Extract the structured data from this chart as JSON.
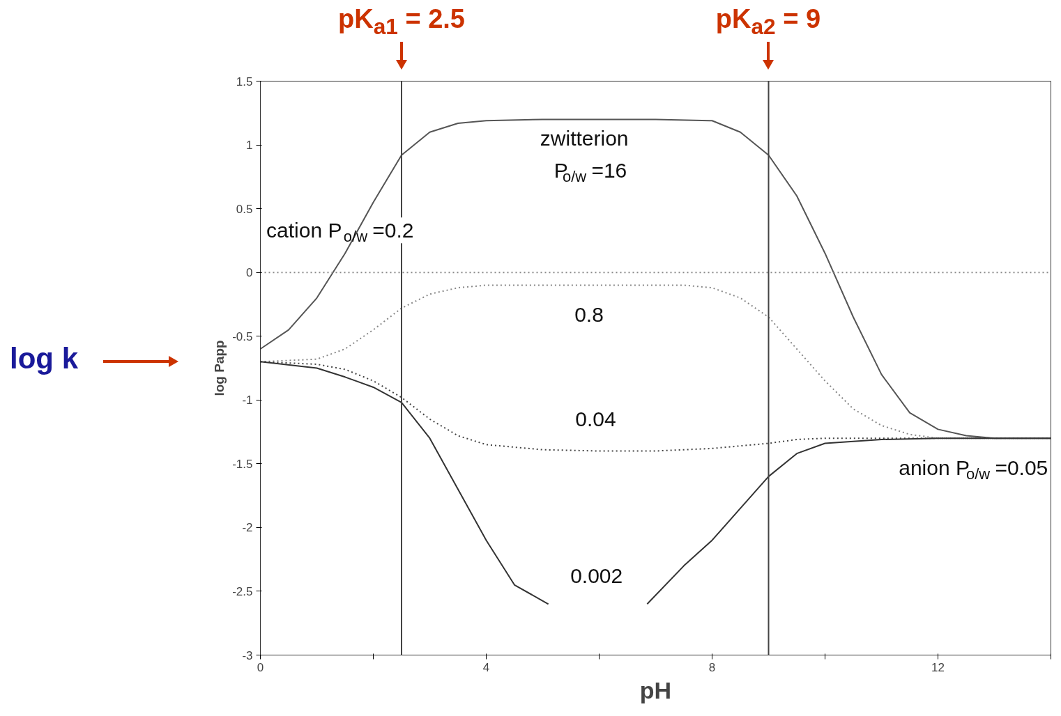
{
  "chart_data": {
    "type": "line",
    "xlabel": "pH",
    "ylabel": "log Papp",
    "xlim": [
      0,
      14
    ],
    "ylim": [
      -3,
      1.5
    ],
    "xticks": [
      0,
      {
        "value": 2,
        "label": null
      },
      4,
      {
        "value": 6,
        "label": null
      },
      8,
      {
        "value": 10,
        "label": null
      },
      12,
      {
        "value": 14,
        "label": null
      }
    ],
    "yticks": [
      1.5,
      1,
      0.5,
      0,
      -0.5,
      -1,
      -1.5,
      -2,
      -2.5,
      -3
    ],
    "grid": false,
    "marker": "none",
    "series": [
      {
        "color": "#555555",
        "line_style": "solid",
        "x": [
          0,
          0.5,
          1,
          1.5,
          2,
          2.5,
          3,
          3.5,
          4,
          5,
          6,
          7,
          8,
          8.5,
          9,
          9.5,
          10,
          10.5,
          11,
          11.5,
          12,
          12.5,
          13,
          14
        ],
        "values": [
          -0.6,
          -0.45,
          -0.2,
          0.15,
          0.55,
          0.92,
          1.1,
          1.17,
          1.19,
          1.2,
          1.2,
          1.2,
          1.19,
          1.1,
          0.92,
          0.6,
          0.15,
          -0.35,
          -0.8,
          -1.1,
          -1.23,
          -1.28,
          -1.3,
          -1.3
        ]
      },
      {
        "color": "#888888",
        "line_style": "dotted",
        "x": [
          0,
          1,
          1.5,
          2,
          2.5,
          3,
          3.5,
          4,
          6,
          7.5,
          8,
          8.5,
          9,
          9.5,
          10,
          10.5,
          11,
          11.5,
          12,
          14
        ],
        "values": [
          -0.7,
          -0.68,
          -0.6,
          -0.45,
          -0.28,
          -0.17,
          -0.12,
          -0.1,
          -0.1,
          -0.1,
          -0.12,
          -0.2,
          -0.35,
          -0.6,
          -0.85,
          -1.07,
          -1.2,
          -1.27,
          -1.3,
          -1.3
        ]
      },
      {
        "color": "#444444",
        "line_style": "dotted",
        "x": [
          0,
          1,
          1.5,
          2,
          2.5,
          3,
          3.5,
          4,
          5,
          6,
          7,
          8,
          8.5,
          9,
          9.5,
          10,
          14
        ],
        "values": [
          -0.7,
          -0.72,
          -0.76,
          -0.85,
          -0.98,
          -1.15,
          -1.28,
          -1.35,
          -1.39,
          -1.4,
          -1.4,
          -1.38,
          -1.36,
          -1.34,
          -1.31,
          -1.3,
          -1.3
        ]
      },
      {
        "color": "#333333",
        "line_style": "solid",
        "x": [
          0,
          1,
          1.5,
          2,
          2.5,
          3,
          3.5,
          4,
          4.5,
          5.1,
          5.5,
          6,
          6.5,
          6.85,
          7.5,
          8,
          8.5,
          9,
          9.5,
          10,
          11,
          12,
          14
        ],
        "values": [
          -0.7,
          -0.75,
          -0.82,
          -0.9,
          -1.02,
          -1.3,
          -1.7,
          -2.1,
          -2.45,
          -2.6,
          null,
          null,
          null,
          -2.6,
          -2.3,
          -2.1,
          -1.85,
          -1.6,
          -1.42,
          -1.34,
          -1.31,
          -1.3,
          -1.3
        ]
      },
      {
        "color": "#888888",
        "line_style": "dotted",
        "x": [
          0,
          14
        ],
        "values": [
          0,
          0
        ]
      }
    ],
    "ref_lines": [
      {
        "axis": "x",
        "value": 2.5,
        "label": "pK$_{a1}$ = 2.5",
        "color": "#444444"
      },
      {
        "axis": "x",
        "value": 9,
        "label": "pK$_{a2}$ = 9",
        "color": "#444444"
      }
    ],
    "annotations": [
      "log k",
      "zwitterion",
      "P$_{o/w}$ =16",
      "cation P$_{o/w}$ =0.2",
      "0.8",
      "0.04",
      "0.002",
      "anion P$_{o/w}$ =0.05"
    ]
  }
}
